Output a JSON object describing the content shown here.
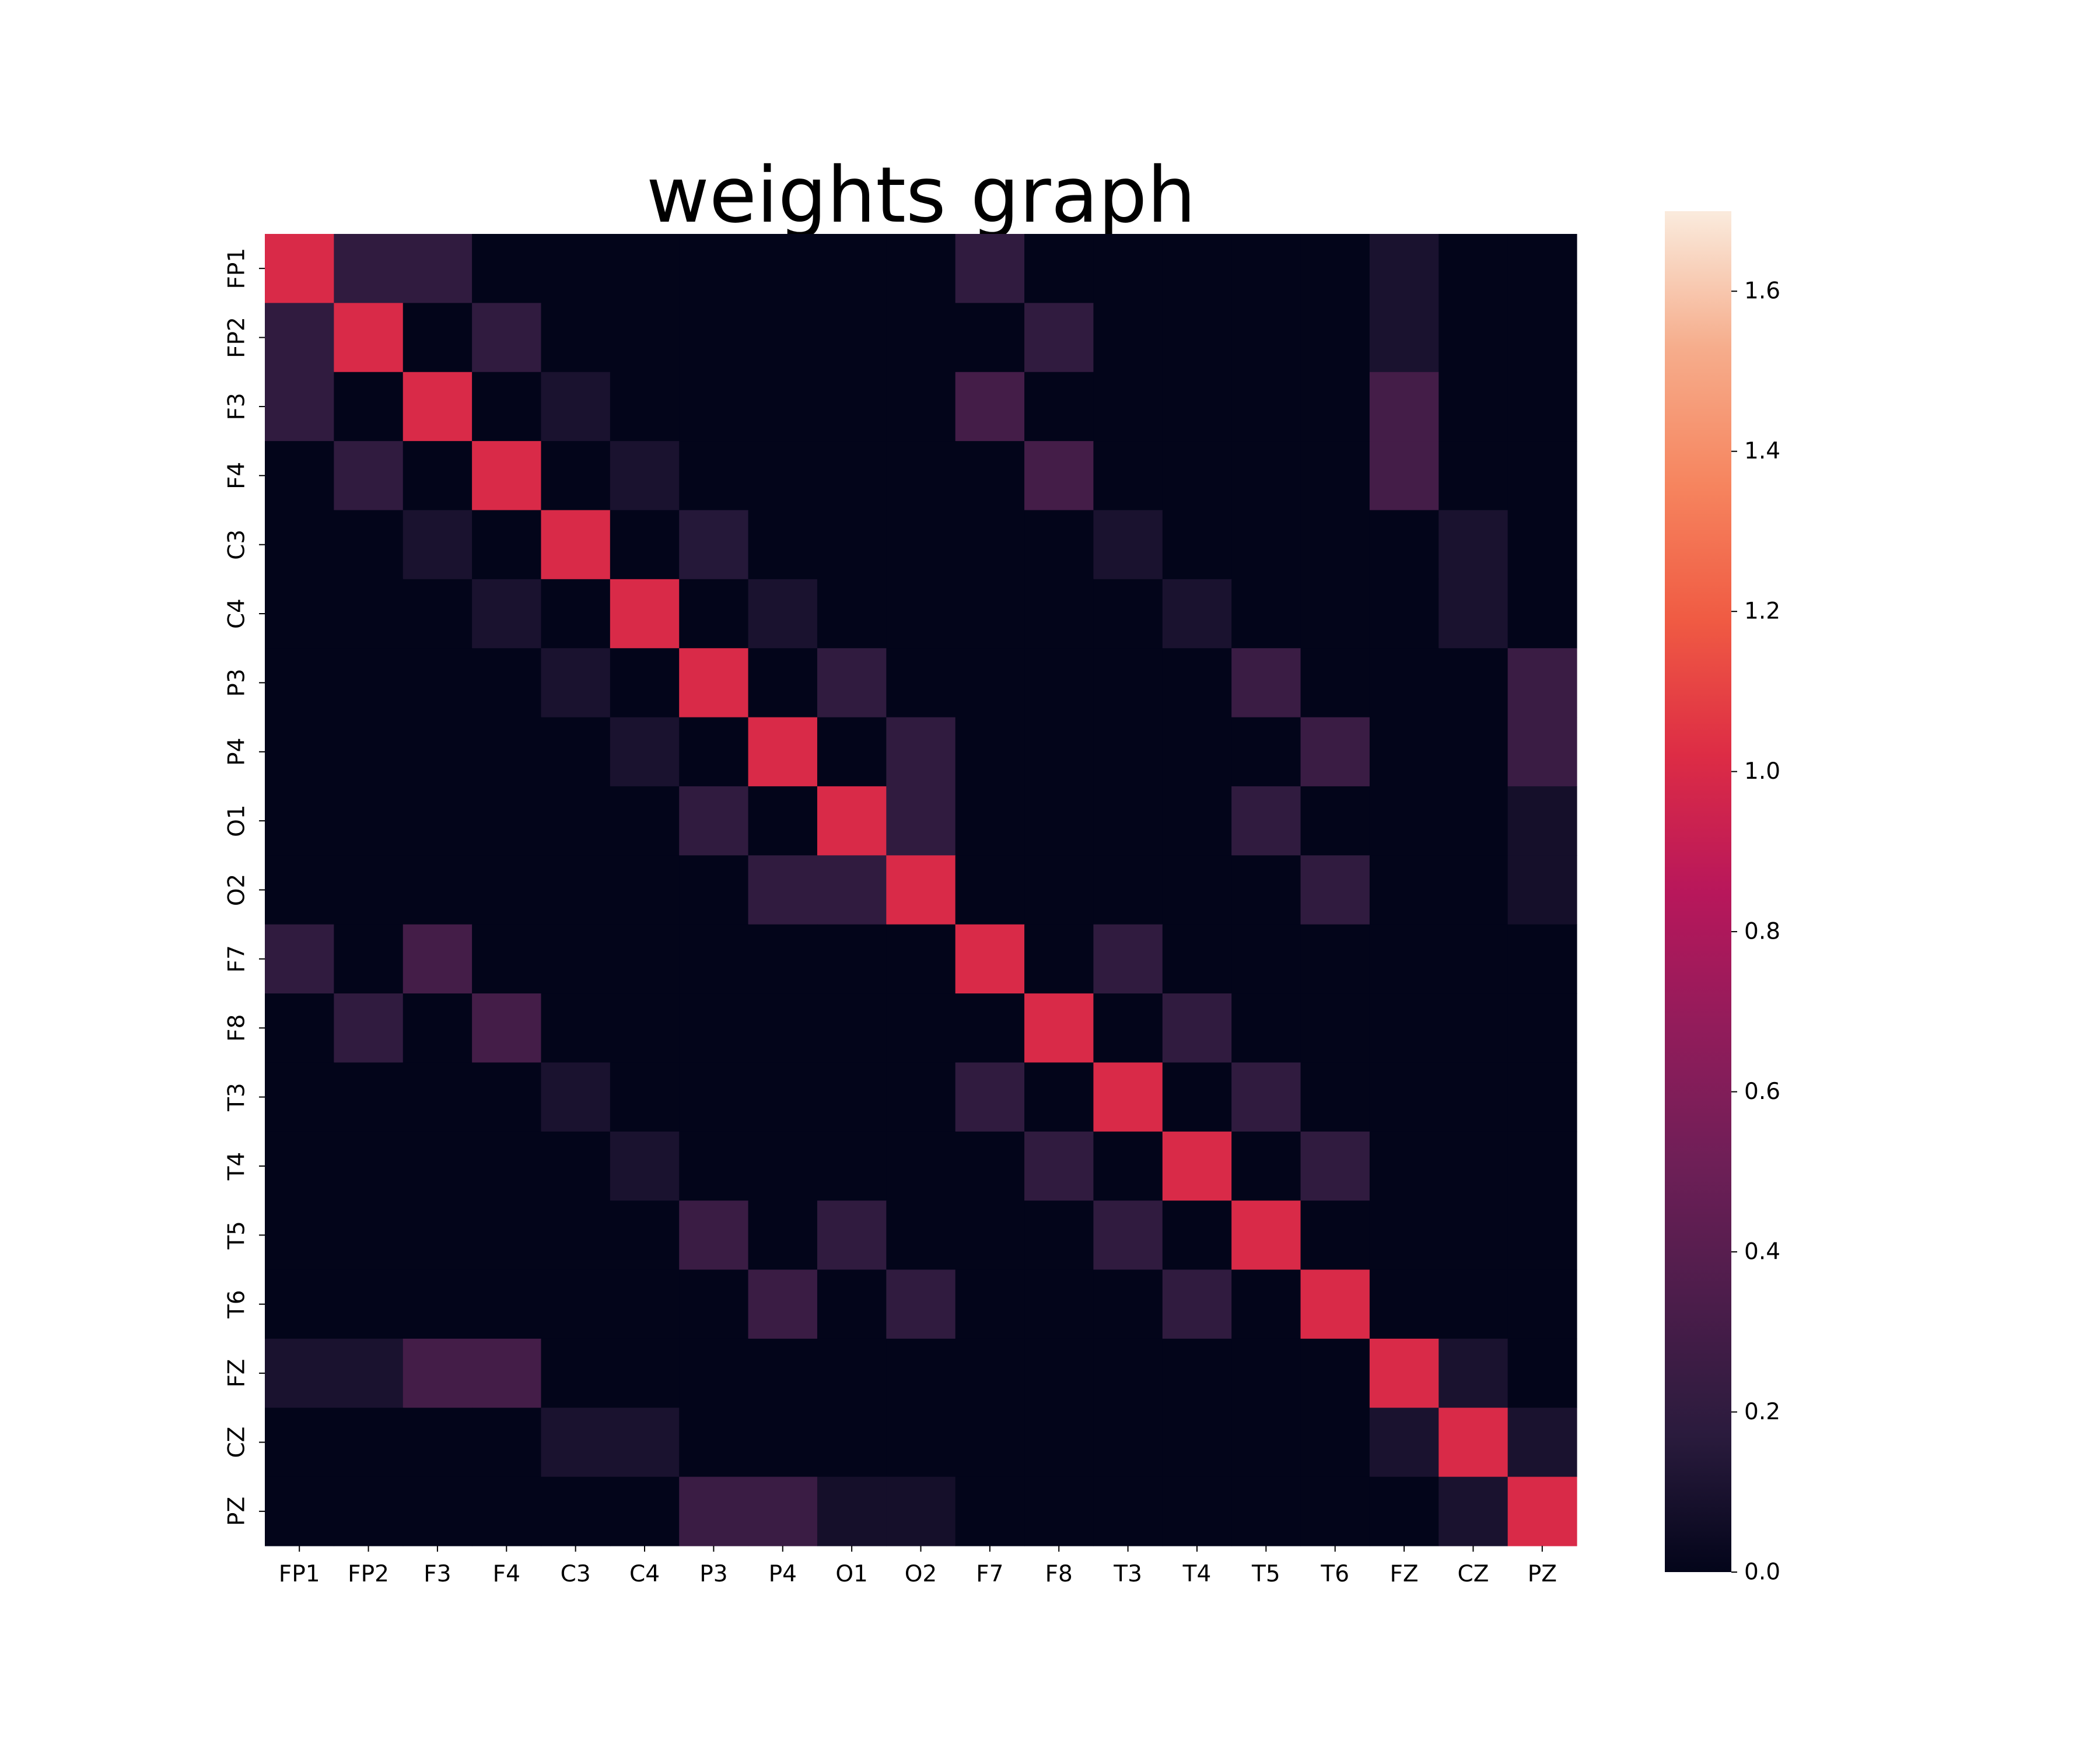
{
  "chart_data": {
    "type": "heatmap",
    "title": "weights graph",
    "xlabel": "",
    "ylabel": "",
    "x_categories": [
      "FP1",
      "FP2",
      "F3",
      "F4",
      "C3",
      "C4",
      "P3",
      "P4",
      "O1",
      "O2",
      "F7",
      "F8",
      "T3",
      "T4",
      "T5",
      "T6",
      "FZ",
      "CZ",
      "PZ"
    ],
    "y_categories": [
      "FP1",
      "FP2",
      "F3",
      "F4",
      "C3",
      "C4",
      "P3",
      "P4",
      "O1",
      "O2",
      "F7",
      "F8",
      "T3",
      "T4",
      "T5",
      "T6",
      "FZ",
      "CZ",
      "PZ"
    ],
    "values": [
      [
        1,
        0.2,
        0.2,
        0,
        0,
        0,
        0,
        0,
        0,
        0,
        0.2,
        0,
        0,
        0,
        0,
        0,
        0.1,
        0,
        0
      ],
      [
        0.2,
        1,
        0,
        0.2,
        0,
        0,
        0,
        0,
        0,
        0,
        0,
        0.2,
        0,
        0,
        0,
        0,
        0.1,
        0,
        0
      ],
      [
        0.2,
        0,
        1,
        0,
        0.1,
        0,
        0,
        0,
        0,
        0,
        0.3,
        0,
        0,
        0,
        0,
        0,
        0.3,
        0,
        0
      ],
      [
        0,
        0.2,
        0,
        1,
        0,
        0.1,
        0,
        0,
        0,
        0,
        0,
        0.3,
        0,
        0,
        0,
        0,
        0.3,
        0,
        0
      ],
      [
        0,
        0,
        0.1,
        0,
        1,
        0,
        0.15,
        0,
        0,
        0,
        0,
        0,
        0.1,
        0,
        0,
        0,
        0,
        0.1,
        0
      ],
      [
        0,
        0,
        0,
        0.1,
        0,
        1,
        0,
        0.1,
        0,
        0,
        0,
        0,
        0,
        0.1,
        0,
        0,
        0,
        0.1,
        0
      ],
      [
        0,
        0,
        0,
        0,
        0.1,
        0,
        1,
        0,
        0.2,
        0,
        0,
        0,
        0,
        0,
        0.25,
        0,
        0,
        0,
        0.25
      ],
      [
        0,
        0,
        0,
        0,
        0,
        0.1,
        0,
        1,
        0,
        0.2,
        0,
        0,
        0,
        0,
        0,
        0.25,
        0,
        0,
        0.25
      ],
      [
        0,
        0,
        0,
        0,
        0,
        0,
        0.2,
        0,
        1,
        0.2,
        0,
        0,
        0,
        0,
        0.2,
        0,
        0,
        0,
        0.08
      ],
      [
        0,
        0,
        0,
        0,
        0,
        0,
        0,
        0.2,
        0.2,
        1,
        0,
        0,
        0,
        0,
        0,
        0.2,
        0,
        0,
        0.08
      ],
      [
        0.2,
        0,
        0.3,
        0,
        0,
        0,
        0,
        0,
        0,
        0,
        1,
        0,
        0.2,
        0,
        0,
        0,
        0,
        0,
        0
      ],
      [
        0,
        0.2,
        0,
        0.3,
        0,
        0,
        0,
        0,
        0,
        0,
        0,
        1,
        0,
        0.2,
        0,
        0,
        0,
        0,
        0
      ],
      [
        0,
        0,
        0,
        0,
        0.1,
        0,
        0,
        0,
        0,
        0,
        0.2,
        0,
        1,
        0,
        0.2,
        0,
        0,
        0,
        0
      ],
      [
        0,
        0,
        0,
        0,
        0,
        0.1,
        0,
        0,
        0,
        0,
        0,
        0.2,
        0,
        1,
        0,
        0.2,
        0,
        0,
        0
      ],
      [
        0,
        0,
        0,
        0,
        0,
        0,
        0.25,
        0,
        0.2,
        0,
        0,
        0,
        0.2,
        0,
        1,
        0,
        0,
        0,
        0
      ],
      [
        0,
        0,
        0,
        0,
        0,
        0,
        0,
        0.25,
        0,
        0.2,
        0,
        0,
        0,
        0.2,
        0,
        1,
        0,
        0,
        0
      ],
      [
        0.1,
        0.1,
        0.3,
        0.3,
        0,
        0,
        0,
        0,
        0,
        0,
        0,
        0,
        0,
        0,
        0,
        0,
        1,
        0.1,
        0
      ],
      [
        0,
        0,
        0,
        0,
        0.1,
        0.1,
        0,
        0,
        0,
        0,
        0,
        0,
        0,
        0,
        0,
        0,
        0.1,
        1,
        0.1
      ],
      [
        0,
        0,
        0,
        0,
        0,
        0,
        0.25,
        0.25,
        0.08,
        0.08,
        0,
        0,
        0,
        0,
        0,
        0,
        0,
        0.1,
        1
      ]
    ],
    "colorbar": {
      "range": [
        0.0,
        1.7
      ],
      "ticks": [
        0.0,
        0.2,
        0.4,
        0.6,
        0.8,
        1.0,
        1.2,
        1.4,
        1.6
      ],
      "tick_labels": [
        "0.0",
        "0.2",
        "0.4",
        "0.6",
        "0.8",
        "1.0",
        "1.2",
        "1.4",
        "1.6"
      ],
      "colormap": "rocket",
      "color_stops": [
        "#03051a",
        "#2a1b3d",
        "#4c1d4b",
        "#6e1f57",
        "#921c5b",
        "#b8175b",
        "#dd2c45",
        "#f05b43",
        "#f6855f",
        "#f6ad8c",
        "#faebdd"
      ]
    },
    "grid": false,
    "legend": "colorbar-right"
  }
}
